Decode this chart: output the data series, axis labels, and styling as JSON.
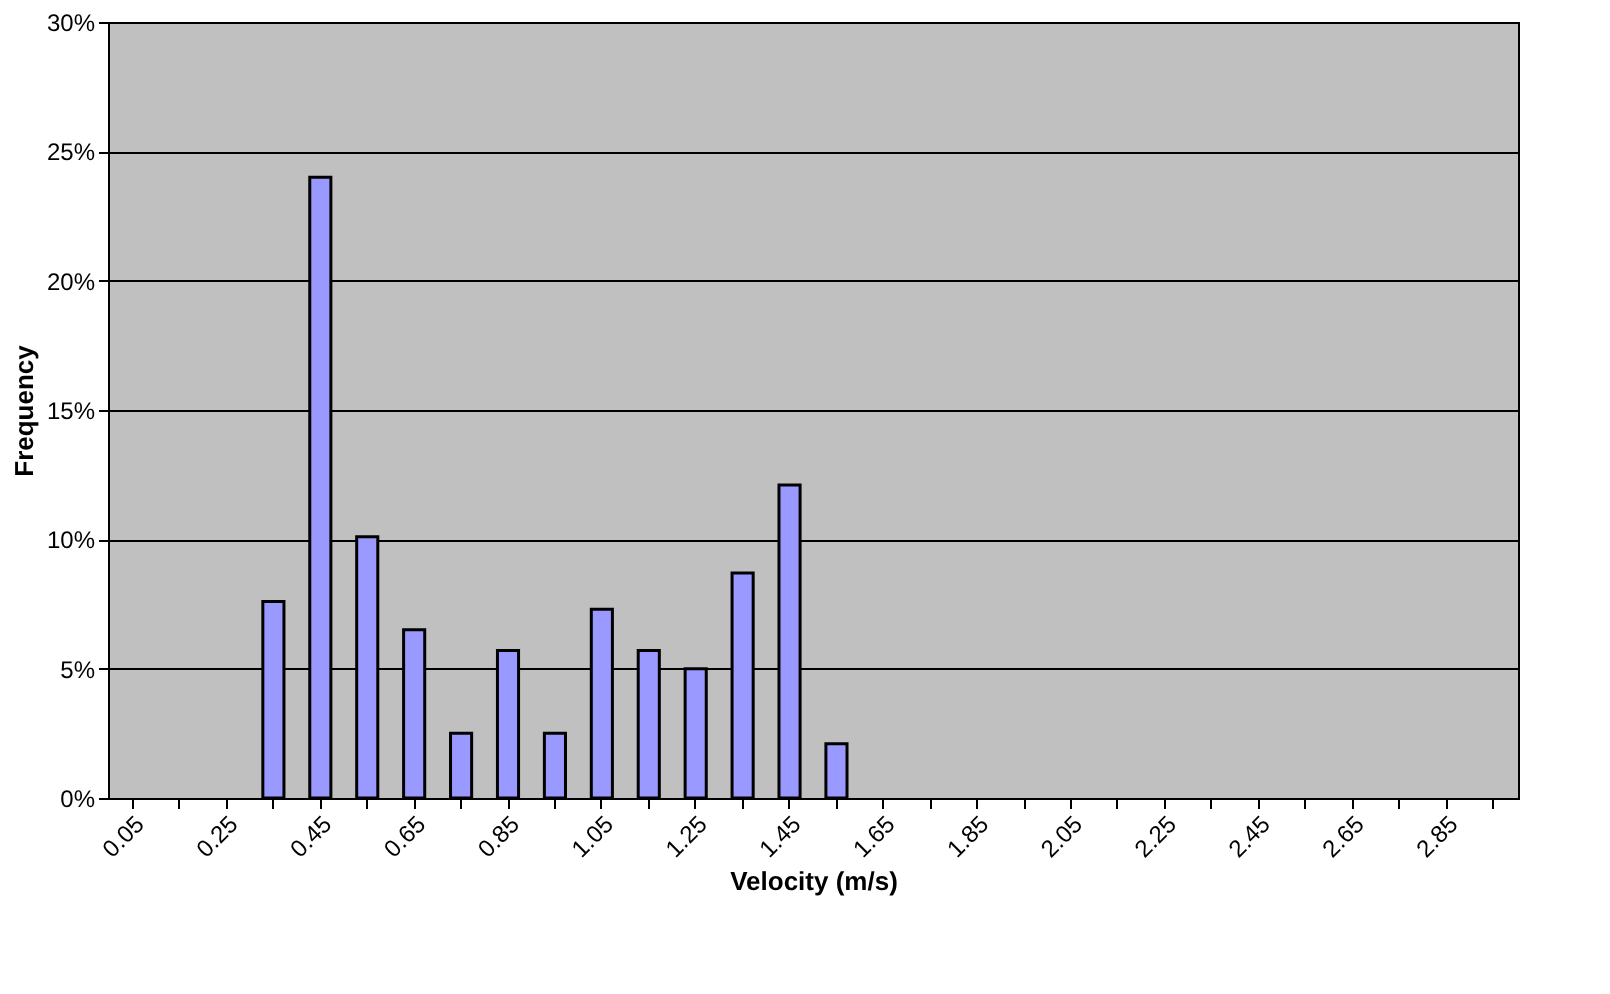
{
  "chart_data": {
    "type": "bar",
    "xlabel": "Velocity (m/s)",
    "ylabel": "Frequency",
    "categories": [
      "0.05",
      null,
      "0.25",
      null,
      "0.45",
      null,
      "0.65",
      null,
      "0.85",
      null,
      "1.05",
      null,
      "1.25",
      null,
      "1.45",
      null,
      "1.65",
      null,
      "1.85",
      null,
      "2.05",
      null,
      "2.25",
      null,
      "2.45",
      null,
      "2.65",
      null,
      "2.85",
      null
    ],
    "values": [
      null,
      null,
      null,
      7.6,
      24,
      10.1,
      6.5,
      2.5,
      5.7,
      2.5,
      7.3,
      5.7,
      5.0,
      8.7,
      12.1,
      2.1,
      null,
      null,
      null,
      null,
      null,
      null,
      null,
      null,
      null,
      null,
      null,
      null,
      null,
      null
    ],
    "color": "#9999ff",
    "ylim": [
      0,
      30
    ],
    "yticks": [
      {
        "value": 0,
        "label": "0%"
      },
      {
        "value": 5,
        "label": "5%"
      },
      {
        "value": 10,
        "label": "10%"
      },
      {
        "value": 15,
        "label": "15%"
      },
      {
        "value": 20,
        "label": "20%"
      },
      {
        "value": 25,
        "label": "25%"
      },
      {
        "value": 30,
        "label": "30%"
      }
    ],
    "grid": "y"
  }
}
